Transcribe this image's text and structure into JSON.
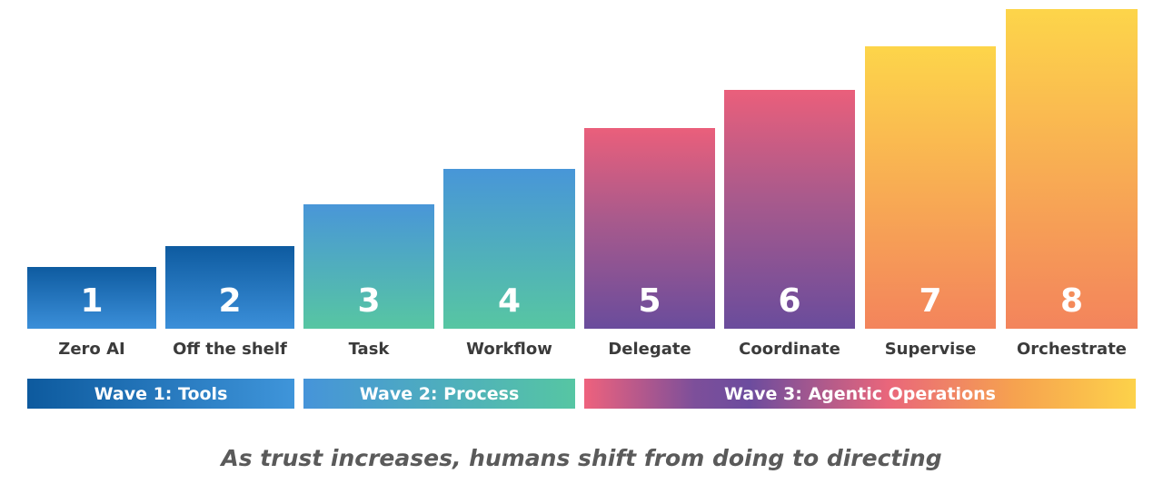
{
  "steps": [
    {
      "number": "1",
      "label": "Zero AI",
      "level": 1,
      "wave": 1
    },
    {
      "number": "2",
      "label": "Off the shelf",
      "level": 2,
      "wave": 1
    },
    {
      "number": "3",
      "label": "Task",
      "level": 3,
      "wave": 2
    },
    {
      "number": "4",
      "label": "Workflow",
      "level": 4,
      "wave": 2
    },
    {
      "number": "5",
      "label": "Delegate",
      "level": 5,
      "wave": 3
    },
    {
      "number": "6",
      "label": "Coordinate",
      "level": 6,
      "wave": 3
    },
    {
      "number": "7",
      "label": "Supervise",
      "level": 7,
      "wave": 3
    },
    {
      "number": "8",
      "label": "Orchestrate",
      "level": 8,
      "wave": 3
    }
  ],
  "waves": [
    {
      "label": "Wave 1: Tools"
    },
    {
      "label": "Wave 2: Process"
    },
    {
      "label": "Wave 3: Agentic Operations"
    }
  ],
  "caption": "As trust increases, humans shift from doing to directing",
  "colors": {
    "dark_blue": "#0d5a9e",
    "light_blue": "#3a8ed8",
    "sky_blue": "#4a98d6",
    "teal": "#55c4a4",
    "pink": "#e8607e",
    "purple": "#6a4c9c",
    "yellow": "#fdd24a",
    "orange": "#f3855c",
    "label_text": "#3b3b3b",
    "caption_text": "#5a5a5a"
  }
}
